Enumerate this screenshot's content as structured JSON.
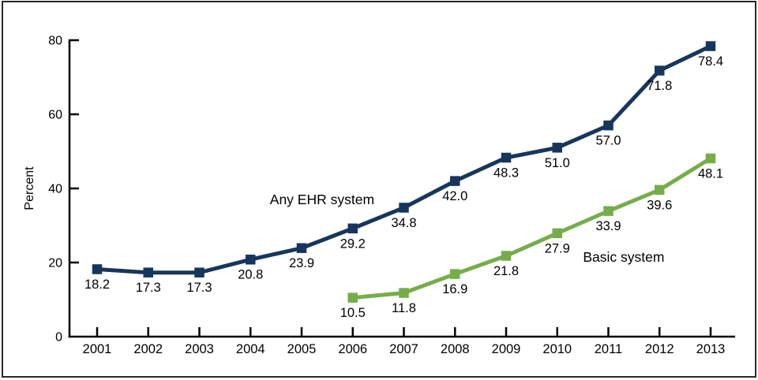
{
  "frame": {
    "background": "#ffffff",
    "border_color": "#2a2a2a"
  },
  "chart_data": {
    "type": "line",
    "title": "",
    "xlabel": "",
    "ylabel": "Percent",
    "ylim": [
      0,
      80
    ],
    "yticks": [
      0,
      20,
      40,
      60,
      80
    ],
    "grid": false,
    "legend_position": "inline-annotations",
    "marker": "square",
    "data_labels": true,
    "axis_color": "#000000",
    "categories": [
      2001,
      2002,
      2003,
      2004,
      2005,
      2006,
      2007,
      2008,
      2009,
      2010,
      2011,
      2012,
      2013
    ],
    "series": [
      {
        "name": "Any EHR system",
        "color": "#17365d",
        "values": [
          18.2,
          17.3,
          17.3,
          20.8,
          23.9,
          29.2,
          34.8,
          42.0,
          48.3,
          51.0,
          57.0,
          71.8,
          78.4
        ]
      },
      {
        "name": "Basic system",
        "color": "#76ad4b",
        "values": [
          null,
          null,
          null,
          null,
          null,
          10.5,
          11.8,
          16.9,
          21.8,
          27.9,
          33.9,
          39.6,
          48.1
        ]
      }
    ],
    "annotations": [
      {
        "text": "Any EHR system",
        "color": "#17365d",
        "x": 2005.4,
        "y": 37.0
      },
      {
        "text": "Basic system",
        "color": "#76ad4b",
        "x": 2011.3,
        "y": 21.5
      }
    ]
  }
}
